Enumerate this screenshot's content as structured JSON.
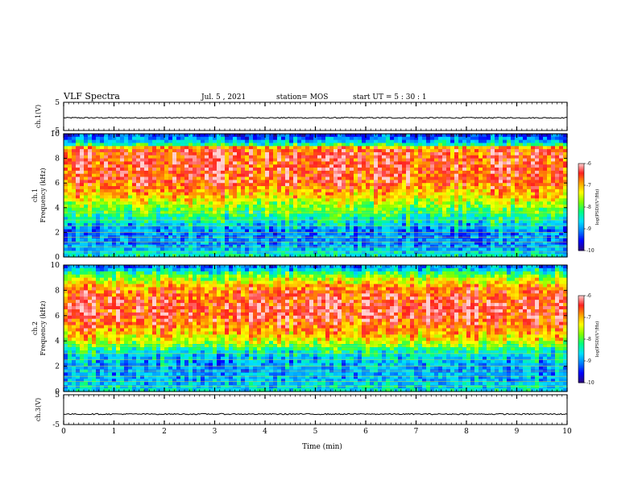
{
  "header": {
    "title": "VLF Spectra",
    "date": "Jul. 5 , 2021",
    "station": "station= MOS",
    "start": "start UT = 5 : 30 : 1"
  },
  "colors": {
    "colormap": [
      "#2a0a7a",
      "#0000ff",
      "#0080ff",
      "#00e0ff",
      "#00ff80",
      "#80ff00",
      "#ffff00",
      "#ffa000",
      "#ff2020",
      "#ffd0d0"
    ]
  },
  "chart_data": [
    {
      "type": "line",
      "name": "waveform-ch1",
      "ylabel": "ch.1(V)",
      "ylim": [
        -5,
        5
      ],
      "yticks": [
        "5",
        "-5"
      ],
      "xlim": [
        0,
        10
      ],
      "approx_level": -0.5
    },
    {
      "type": "heatmap",
      "name": "spectrogram-ch1",
      "ylabel": "ch.1\nFrequency (kHz)",
      "ylabel_lines": [
        "ch.1",
        "Frequency (kHz)"
      ],
      "xlim": [
        0,
        10
      ],
      "ylim": [
        0,
        10
      ],
      "yticks": [
        "0",
        "2",
        "4",
        "6",
        "8",
        "10"
      ],
      "colorbar": {
        "label": "log(PSD)(V²/Hz)",
        "range": [
          -10,
          -6
        ],
        "ticks": [
          "-6",
          "-7",
          "-8",
          "-9",
          "-10"
        ]
      },
      "approx_profile": {
        "freq_khz": [
          0,
          1,
          2,
          3,
          4,
          5,
          6,
          7,
          8,
          8.8,
          9.2,
          10
        ],
        "log_psd": [
          -8.4,
          -9.0,
          -9.1,
          -8.4,
          -7.8,
          -7.1,
          -6.6,
          -6.5,
          -6.5,
          -6.6,
          -8.6,
          -9.5
        ]
      }
    },
    {
      "type": "heatmap",
      "name": "spectrogram-ch2",
      "ylabel": "ch.2\nFrequency (kHz)",
      "ylabel_lines": [
        "ch.2",
        "Frequency (kHz)"
      ],
      "xlim": [
        0,
        10
      ],
      "ylim": [
        0,
        10
      ],
      "yticks": [
        "0",
        "2",
        "4",
        "6",
        "8",
        "10"
      ],
      "colorbar": {
        "label": "log(PSD)(V²/Hz)",
        "range": [
          -10,
          -6
        ],
        "ticks": [
          "-6",
          "-7",
          "-8",
          "-9",
          "-10"
        ]
      },
      "approx_profile": {
        "freq_khz": [
          0,
          1,
          2,
          3,
          4,
          5,
          6,
          7,
          8,
          9,
          9.6,
          10
        ],
        "log_psd": [
          -8.5,
          -8.9,
          -8.9,
          -8.6,
          -7.4,
          -6.8,
          -6.4,
          -6.4,
          -6.7,
          -7.6,
          -8.6,
          -9.2
        ]
      }
    },
    {
      "type": "line",
      "name": "waveform-ch3",
      "ylabel": "ch.3(V)",
      "ylim": [
        -5,
        5
      ],
      "yticks": [
        "5",
        "-5"
      ],
      "xlim": [
        0,
        10
      ],
      "approx_level": -1.5
    }
  ],
  "xaxis": {
    "label": "Time (min)",
    "ticks": [
      "0",
      "1",
      "2",
      "3",
      "4",
      "5",
      "6",
      "7",
      "8",
      "9",
      "10"
    ]
  }
}
